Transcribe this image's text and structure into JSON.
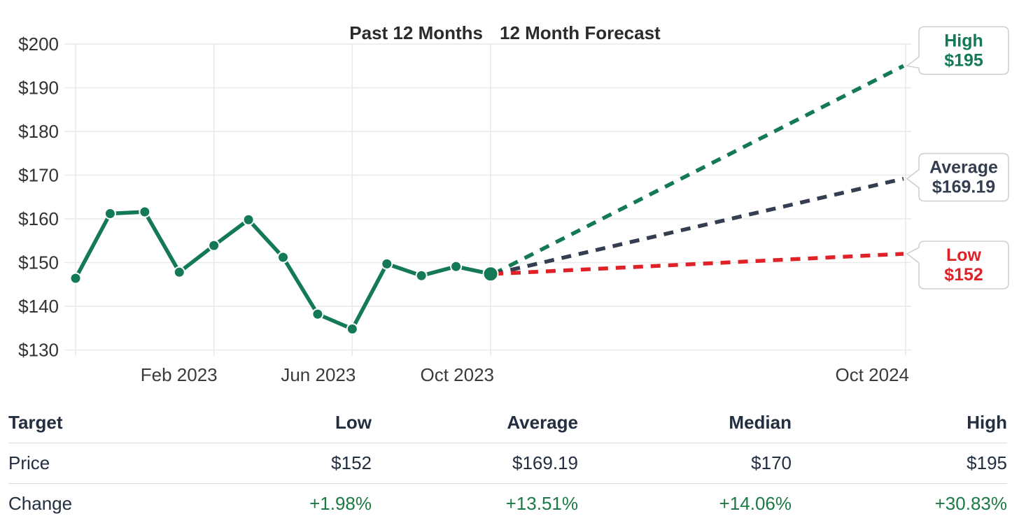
{
  "chart_data": {
    "type": "line",
    "title_past": "Past 12 Months",
    "title_forecast": "12 Month Forecast",
    "ylim": [
      130,
      200
    ],
    "y_tick_values": [
      130,
      140,
      150,
      160,
      170,
      180,
      190,
      200
    ],
    "y_tick_labels": [
      "$130",
      "$140",
      "$150",
      "$160",
      "$170",
      "$180",
      "$190",
      "$200"
    ],
    "x_ticks": [
      {
        "label": "Feb 2023",
        "month_index": 4
      },
      {
        "label": "Jun 2023",
        "month_index": 8
      },
      {
        "label": "Oct 2023",
        "month_index": 12
      },
      {
        "label": "Oct 2024",
        "month_index": 24
      }
    ],
    "grid_month_indices": [
      0,
      4,
      8,
      12,
      24
    ],
    "history": {
      "months": [
        "Oct 2022",
        "Nov 2022",
        "Dec 2022",
        "Jan 2023",
        "Feb 2023",
        "Mar 2023",
        "Apr 2023",
        "May 2023",
        "Jun 2023",
        "Jul 2023",
        "Aug 2023",
        "Sep 2023",
        "Oct 2023"
      ],
      "values": [
        146.4,
        161.2,
        161.6,
        147.8,
        153.9,
        159.8,
        151.2,
        138.2,
        134.8,
        149.7,
        147.0,
        149.1,
        147.4
      ]
    },
    "forecast": {
      "start_month_index": 12,
      "end_month_index": 24,
      "start_value": 147.4,
      "lines": [
        {
          "name": "High",
          "end_value": 195,
          "label_value": "$195",
          "color_key": "green"
        },
        {
          "name": "Average",
          "end_value": 169.19,
          "label_value": "$169.19",
          "color_key": "navy"
        },
        {
          "name": "Low",
          "end_value": 152,
          "label_value": "$152",
          "color_key": "red"
        }
      ]
    },
    "colors": {
      "green": "#137a55",
      "navy": "#343e50",
      "red": "#df2128",
      "grid": "#e9e9e9",
      "axis_text": "#333333",
      "title_text": "#2b2b2b",
      "callout_border": "#cdd0d4",
      "callout_bg": "#ffffff"
    },
    "legend_position": "none",
    "grid": true
  },
  "table": {
    "headers": [
      "Target",
      "Low",
      "Average",
      "Median",
      "High"
    ],
    "rows": [
      {
        "label": "Price",
        "values": [
          "$152",
          "$169.19",
          "$170",
          "$195"
        ]
      },
      {
        "label": "Change",
        "values": [
          "+1.98%",
          "+13.51%",
          "+14.06%",
          "+30.83%"
        ]
      }
    ],
    "change_color": "#1d7a44",
    "text_color": "#232e40"
  }
}
